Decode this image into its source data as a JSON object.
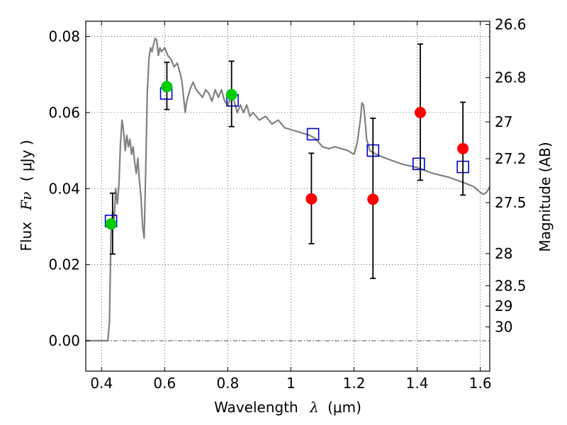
{
  "chart_data": {
    "type": "scatter",
    "xlabel_main": "Wavelength",
    "xlabel_symbol": "λ",
    "xlabel_unit": "(μm)",
    "ylabel_main": "Flux",
    "ylabel_symbol": "Fν",
    "ylabel_unit": "( μJy )",
    "ylabel_right": "Magnitude (AB)",
    "xlim": [
      0.35,
      1.63
    ],
    "ylim": [
      -0.008,
      0.084
    ],
    "grid": true,
    "x_ticks": [
      0.4,
      0.6,
      0.8,
      1.0,
      1.2,
      1.4,
      1.6
    ],
    "x_tick_labels": [
      "0.4",
      "0.6",
      "0.8",
      "1",
      "1.2",
      "1.4",
      "1.6"
    ],
    "y_ticks": [
      0.0,
      0.02,
      0.04,
      0.06,
      0.08
    ],
    "y_tick_labels": [
      "0.00",
      "0.02",
      "0.04",
      "0.06",
      "0.08"
    ],
    "mag_ticks": [
      {
        "label": "26.6",
        "mag": 26.6
      },
      {
        "label": "26.8",
        "mag": 26.8
      },
      {
        "label": "27",
        "mag": 27.0
      },
      {
        "label": "27.2",
        "mag": 27.2
      },
      {
        "label": "27.5",
        "mag": 27.5
      },
      {
        "label": "28",
        "mag": 28.0
      },
      {
        "label": "28.5",
        "mag": 28.5
      },
      {
        "label": "29",
        "mag": 29.0
      },
      {
        "label": "30",
        "mag": 30.0
      }
    ],
    "series": [
      {
        "kind": "line",
        "color": "#808080",
        "points": [
          [
            0.35,
            0.0
          ],
          [
            0.42,
            0.0
          ],
          [
            0.425,
            0.005
          ],
          [
            0.43,
            0.028
          ],
          [
            0.435,
            0.034
          ],
          [
            0.44,
            0.032
          ],
          [
            0.445,
            0.04
          ],
          [
            0.45,
            0.036
          ],
          [
            0.455,
            0.041
          ],
          [
            0.46,
            0.052
          ],
          [
            0.465,
            0.058
          ],
          [
            0.47,
            0.055
          ],
          [
            0.475,
            0.05
          ],
          [
            0.48,
            0.054
          ],
          [
            0.485,
            0.051
          ],
          [
            0.49,
            0.053
          ],
          [
            0.495,
            0.049
          ],
          [
            0.5,
            0.051
          ],
          [
            0.505,
            0.047
          ],
          [
            0.51,
            0.044
          ],
          [
            0.515,
            0.048
          ],
          [
            0.52,
            0.042
          ],
          [
            0.525,
            0.038
          ],
          [
            0.53,
            0.03
          ],
          [
            0.535,
            0.027
          ],
          [
            0.54,
            0.045
          ],
          [
            0.545,
            0.065
          ],
          [
            0.55,
            0.074
          ],
          [
            0.555,
            0.077
          ],
          [
            0.56,
            0.076
          ],
          [
            0.565,
            0.078
          ],
          [
            0.57,
            0.0795
          ],
          [
            0.575,
            0.079
          ],
          [
            0.58,
            0.075
          ],
          [
            0.585,
            0.077
          ],
          [
            0.59,
            0.076
          ],
          [
            0.6,
            0.077
          ],
          [
            0.61,
            0.075
          ],
          [
            0.62,
            0.074
          ],
          [
            0.63,
            0.072
          ],
          [
            0.64,
            0.073
          ],
          [
            0.65,
            0.07
          ],
          [
            0.655,
            0.068
          ],
          [
            0.66,
            0.064
          ],
          [
            0.665,
            0.06
          ],
          [
            0.67,
            0.063
          ],
          [
            0.68,
            0.066
          ],
          [
            0.69,
            0.068
          ],
          [
            0.7,
            0.066
          ],
          [
            0.71,
            0.065
          ],
          [
            0.72,
            0.064
          ],
          [
            0.73,
            0.066
          ],
          [
            0.74,
            0.065
          ],
          [
            0.75,
            0.063
          ],
          [
            0.76,
            0.066
          ],
          [
            0.77,
            0.064
          ],
          [
            0.78,
            0.066
          ],
          [
            0.79,
            0.063
          ],
          [
            0.8,
            0.062
          ],
          [
            0.81,
            0.064
          ],
          [
            0.82,
            0.063
          ],
          [
            0.83,
            0.06
          ],
          [
            0.84,
            0.062
          ],
          [
            0.85,
            0.06
          ],
          [
            0.86,
            0.062
          ],
          [
            0.87,
            0.059
          ],
          [
            0.88,
            0.06
          ],
          [
            0.9,
            0.058
          ],
          [
            0.92,
            0.059
          ],
          [
            0.94,
            0.057
          ],
          [
            0.96,
            0.058
          ],
          [
            0.98,
            0.056
          ],
          [
            1.0,
            0.0555
          ],
          [
            1.02,
            0.055
          ],
          [
            1.04,
            0.0545
          ],
          [
            1.06,
            0.054
          ],
          [
            1.08,
            0.053
          ],
          [
            1.1,
            0.051
          ],
          [
            1.12,
            0.0505
          ],
          [
            1.14,
            0.051
          ],
          [
            1.16,
            0.0505
          ],
          [
            1.18,
            0.05
          ],
          [
            1.2,
            0.049
          ],
          [
            1.21,
            0.052
          ],
          [
            1.22,
            0.058
          ],
          [
            1.225,
            0.0625
          ],
          [
            1.23,
            0.062
          ],
          [
            1.235,
            0.058
          ],
          [
            1.24,
            0.053
          ],
          [
            1.25,
            0.05
          ],
          [
            1.27,
            0.049
          ],
          [
            1.3,
            0.048
          ],
          [
            1.35,
            0.0465
          ],
          [
            1.4,
            0.0455
          ],
          [
            1.45,
            0.044
          ],
          [
            1.5,
            0.043
          ],
          [
            1.55,
            0.0415
          ],
          [
            1.58,
            0.0405
          ],
          [
            1.6,
            0.039
          ],
          [
            1.61,
            0.0385
          ],
          [
            1.62,
            0.039
          ],
          [
            1.63,
            0.0405
          ]
        ]
      },
      {
        "kind": "square",
        "color": "#0000cc",
        "points": [
          [
            0.43,
            0.0315
          ],
          [
            0.605,
            0.065
          ],
          [
            0.815,
            0.0632
          ],
          [
            1.07,
            0.0543
          ],
          [
            1.26,
            0.05
          ],
          [
            1.405,
            0.0465
          ],
          [
            1.545,
            0.0457
          ]
        ]
      },
      {
        "kind": "circle",
        "color": "#00cc00",
        "points": [
          [
            0.43,
            0.0307
          ],
          [
            0.607,
            0.0668
          ],
          [
            0.812,
            0.0647
          ]
        ]
      },
      {
        "kind": "circle",
        "color": "#ff0000",
        "points": [
          [
            1.065,
            0.0373
          ],
          [
            1.26,
            0.0372
          ],
          [
            1.41,
            0.06
          ],
          [
            1.545,
            0.0505
          ]
        ]
      },
      {
        "kind": "errorbar",
        "color": "#000000",
        "bars": [
          {
            "x": 0.435,
            "low": 0.0228,
            "high": 0.0388
          },
          {
            "x": 0.607,
            "low": 0.0608,
            "high": 0.0732
          },
          {
            "x": 0.812,
            "low": 0.0563,
            "high": 0.0735
          },
          {
            "x": 1.065,
            "low": 0.0255,
            "high": 0.0493
          },
          {
            "x": 1.26,
            "low": 0.0164,
            "high": 0.0585
          },
          {
            "x": 1.41,
            "low": 0.0422,
            "high": 0.078
          },
          {
            "x": 1.545,
            "low": 0.0383,
            "high": 0.0627
          }
        ]
      }
    ]
  }
}
